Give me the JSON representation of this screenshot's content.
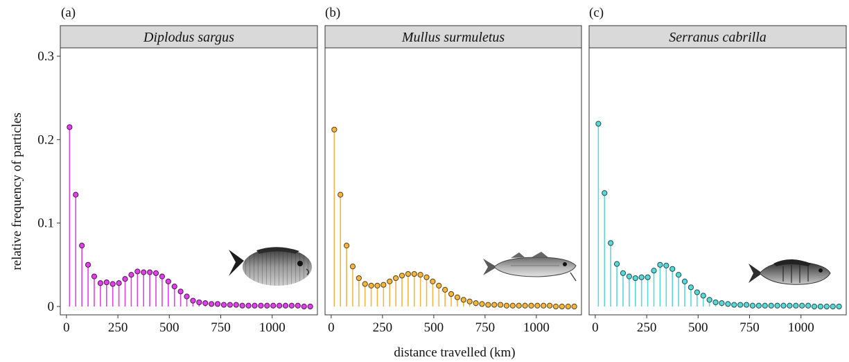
{
  "figure": {
    "ylabel": "relative frequency of particles",
    "xlabel": "distance travelled (km)"
  },
  "chart_data": [
    {
      "type": "lollipop",
      "panel_label": "(a)",
      "title": "Diplodus sargus",
      "color": "#e040e8",
      "xlim": [
        -30,
        1220
      ],
      "ylim": [
        -0.01,
        0.31
      ],
      "x_ticks": [
        0,
        250,
        500,
        750,
        1000
      ],
      "y_ticks": [
        0,
        0.1,
        0.2,
        0.3
      ],
      "y_tick_labels": [
        "0",
        "0.1",
        "0.2",
        "0.3"
      ],
      "x": [
        15,
        45,
        75,
        105,
        135,
        165,
        195,
        225,
        255,
        285,
        315,
        345,
        375,
        405,
        435,
        465,
        495,
        525,
        555,
        585,
        615,
        645,
        675,
        705,
        735,
        765,
        795,
        825,
        855,
        885,
        915,
        945,
        975,
        1005,
        1035,
        1065,
        1095,
        1125,
        1155,
        1185
      ],
      "y": [
        0.215,
        0.134,
        0.073,
        0.05,
        0.036,
        0.028,
        0.029,
        0.027,
        0.028,
        0.033,
        0.038,
        0.042,
        0.041,
        0.041,
        0.04,
        0.036,
        0.03,
        0.024,
        0.018,
        0.012,
        0.007,
        0.005,
        0.004,
        0.003,
        0.003,
        0.002,
        0.002,
        0.002,
        0.001,
        0.001,
        0.001,
        0.001,
        0.001,
        0.001,
        0.001,
        0.001,
        0.001,
        0.001,
        0.0,
        0.0
      ],
      "icon": "fish-icon-sea-bream"
    },
    {
      "type": "lollipop",
      "panel_label": "(b)",
      "title": "Mullus surmuletus",
      "color": "#f5b640",
      "xlim": [
        -30,
        1220
      ],
      "ylim": [
        -0.01,
        0.31
      ],
      "x_ticks": [
        0,
        250,
        500,
        750,
        1000
      ],
      "y_ticks": [
        0,
        0.1,
        0.2,
        0.3
      ],
      "y_tick_labels": [
        "0",
        "0.1",
        "0.2",
        "0.3"
      ],
      "x": [
        15,
        45,
        75,
        105,
        135,
        165,
        195,
        225,
        255,
        285,
        315,
        345,
        375,
        405,
        435,
        465,
        495,
        525,
        555,
        585,
        615,
        645,
        675,
        705,
        735,
        765,
        795,
        825,
        855,
        885,
        915,
        945,
        975,
        1005,
        1035,
        1065,
        1095,
        1125,
        1155,
        1185
      ],
      "y": [
        0.212,
        0.134,
        0.073,
        0.048,
        0.034,
        0.027,
        0.025,
        0.025,
        0.026,
        0.03,
        0.034,
        0.037,
        0.039,
        0.039,
        0.038,
        0.035,
        0.03,
        0.025,
        0.02,
        0.015,
        0.011,
        0.008,
        0.006,
        0.004,
        0.003,
        0.002,
        0.002,
        0.002,
        0.001,
        0.001,
        0.001,
        0.001,
        0.001,
        0.001,
        0.001,
        0.001,
        0.0,
        0.0,
        0.0,
        0.0
      ],
      "icon": "fish-icon-red-mullet"
    },
    {
      "type": "lollipop",
      "panel_label": "(c)",
      "title": "Serranus cabrilla",
      "color": "#5ad8d8",
      "xlim": [
        -30,
        1220
      ],
      "ylim": [
        -0.01,
        0.31
      ],
      "x_ticks": [
        0,
        250,
        500,
        750,
        1000
      ],
      "y_ticks": [
        0,
        0.1,
        0.2,
        0.3
      ],
      "y_tick_labels": [
        "0",
        "0.1",
        "0.2",
        "0.3"
      ],
      "x": [
        15,
        45,
        75,
        105,
        135,
        165,
        195,
        225,
        255,
        285,
        315,
        345,
        375,
        405,
        435,
        465,
        495,
        525,
        555,
        585,
        615,
        645,
        675,
        705,
        735,
        765,
        795,
        825,
        855,
        885,
        915,
        945,
        975,
        1005,
        1035,
        1065,
        1095,
        1125,
        1155,
        1185
      ],
      "y": [
        0.219,
        0.136,
        0.076,
        0.051,
        0.04,
        0.036,
        0.034,
        0.035,
        0.035,
        0.043,
        0.05,
        0.049,
        0.045,
        0.038,
        0.03,
        0.023,
        0.017,
        0.013,
        0.008,
        0.005,
        0.004,
        0.003,
        0.002,
        0.002,
        0.002,
        0.001,
        0.001,
        0.001,
        0.001,
        0.001,
        0.001,
        0.001,
        0.001,
        0.001,
        0.001,
        0.0,
        0.0,
        0.0,
        0.0,
        0.0
      ],
      "icon": "fish-icon-comber"
    }
  ]
}
